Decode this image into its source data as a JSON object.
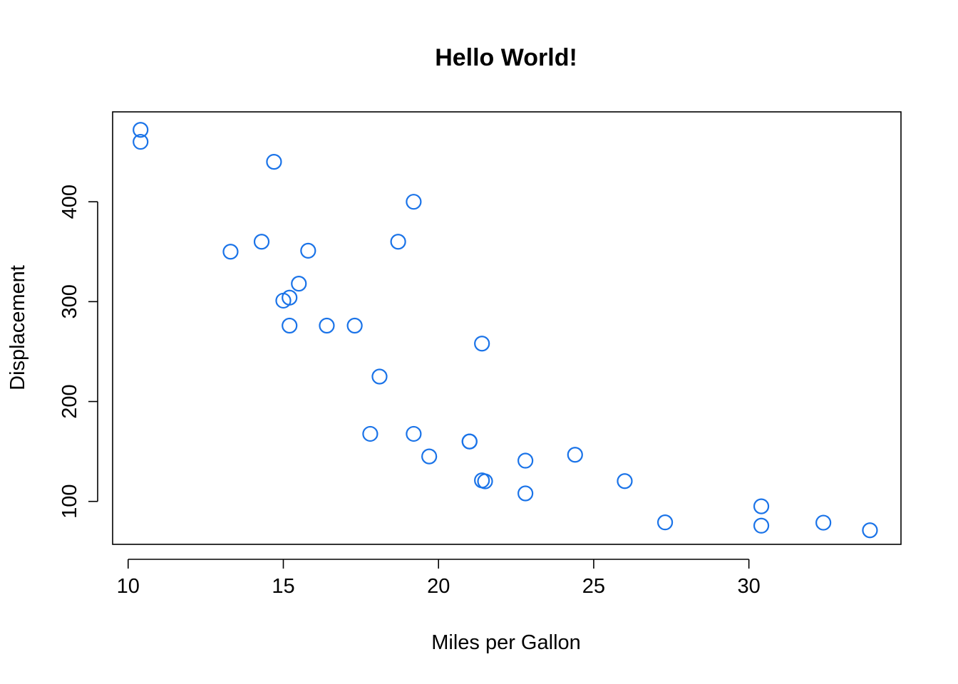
{
  "chart_data": {
    "type": "scatter",
    "title": "Hello World!",
    "xlabel": "Miles per Gallon",
    "ylabel": "Displacement",
    "xlim": [
      9.5,
      34.9
    ],
    "ylim": [
      57,
      490
    ],
    "x_ticks": [
      10,
      15,
      20,
      25,
      30
    ],
    "y_ticks": [
      100,
      200,
      300,
      400
    ],
    "point_color": "#1a73e8",
    "grid": false,
    "legend": "none",
    "points": [
      {
        "x": 10.4,
        "y": 472
      },
      {
        "x": 10.4,
        "y": 460
      },
      {
        "x": 14.7,
        "y": 440
      },
      {
        "x": 19.2,
        "y": 400
      },
      {
        "x": 14.3,
        "y": 360
      },
      {
        "x": 18.7,
        "y": 360
      },
      {
        "x": 13.3,
        "y": 350
      },
      {
        "x": 15.8,
        "y": 351
      },
      {
        "x": 15.5,
        "y": 318
      },
      {
        "x": 15.2,
        "y": 304
      },
      {
        "x": 15.0,
        "y": 301
      },
      {
        "x": 15.2,
        "y": 276
      },
      {
        "x": 16.4,
        "y": 276
      },
      {
        "x": 17.3,
        "y": 276
      },
      {
        "x": 21.4,
        "y": 258
      },
      {
        "x": 18.1,
        "y": 225
      },
      {
        "x": 17.8,
        "y": 167.6
      },
      {
        "x": 19.2,
        "y": 167.6
      },
      {
        "x": 21.0,
        "y": 160
      },
      {
        "x": 21.0,
        "y": 160
      },
      {
        "x": 24.4,
        "y": 146.7
      },
      {
        "x": 19.7,
        "y": 145
      },
      {
        "x": 22.8,
        "y": 140.8
      },
      {
        "x": 21.4,
        "y": 121
      },
      {
        "x": 21.5,
        "y": 120.1
      },
      {
        "x": 26.0,
        "y": 120.3
      },
      {
        "x": 22.8,
        "y": 108
      },
      {
        "x": 30.4,
        "y": 95.1
      },
      {
        "x": 27.3,
        "y": 79
      },
      {
        "x": 32.4,
        "y": 78.7
      },
      {
        "x": 30.4,
        "y": 75.7
      },
      {
        "x": 33.9,
        "y": 71.1
      }
    ]
  }
}
